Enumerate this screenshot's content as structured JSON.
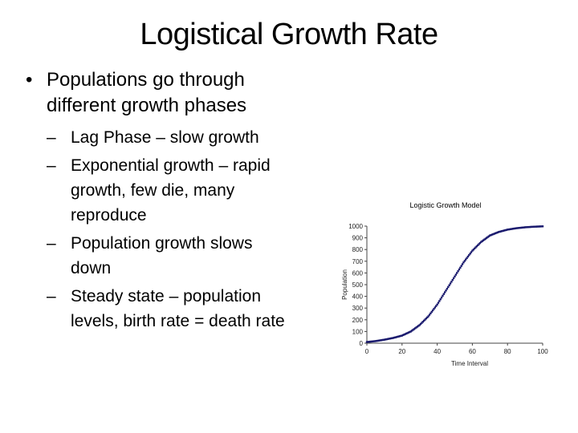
{
  "slide": {
    "title": "Logistical Growth Rate",
    "bullets": [
      {
        "text_lines": [
          "Populations go through",
          "different growth phases"
        ],
        "sub": [
          {
            "lines": [
              "Lag Phase – slow growth"
            ]
          },
          {
            "lines": [
              "Exponential growth – rapid",
              "growth, few die, many",
              "reproduce"
            ]
          },
          {
            "lines": [
              "Population growth slows",
              "down"
            ]
          },
          {
            "lines": [
              "Steady state – population",
              "levels, birth rate = death rate"
            ]
          }
        ]
      }
    ],
    "bullet_glyph": "•",
    "dash_glyph": "–"
  },
  "chart_data": {
    "type": "scatter",
    "title": "Logistic Growth Model",
    "xlabel": "Time Interval",
    "ylabel": "Population",
    "xlim": [
      0,
      100
    ],
    "ylim": [
      0,
      1000
    ],
    "xticks": [
      0,
      20,
      40,
      60,
      80,
      100
    ],
    "yticks": [
      0,
      100,
      200,
      300,
      400,
      500,
      600,
      700,
      800,
      900,
      1000
    ],
    "grid": false,
    "legend": null,
    "marker_color": "#1a1a6e",
    "series": [
      {
        "name": "Population",
        "x": [
          0,
          5,
          10,
          15,
          20,
          25,
          30,
          35,
          40,
          45,
          50,
          55,
          60,
          65,
          70,
          75,
          80,
          85,
          90,
          95,
          100
        ],
        "values": [
          10,
          18,
          30,
          45,
          65,
          100,
          155,
          230,
          330,
          450,
          570,
          690,
          790,
          865,
          920,
          950,
          970,
          982,
          990,
          995,
          998
        ]
      }
    ]
  }
}
